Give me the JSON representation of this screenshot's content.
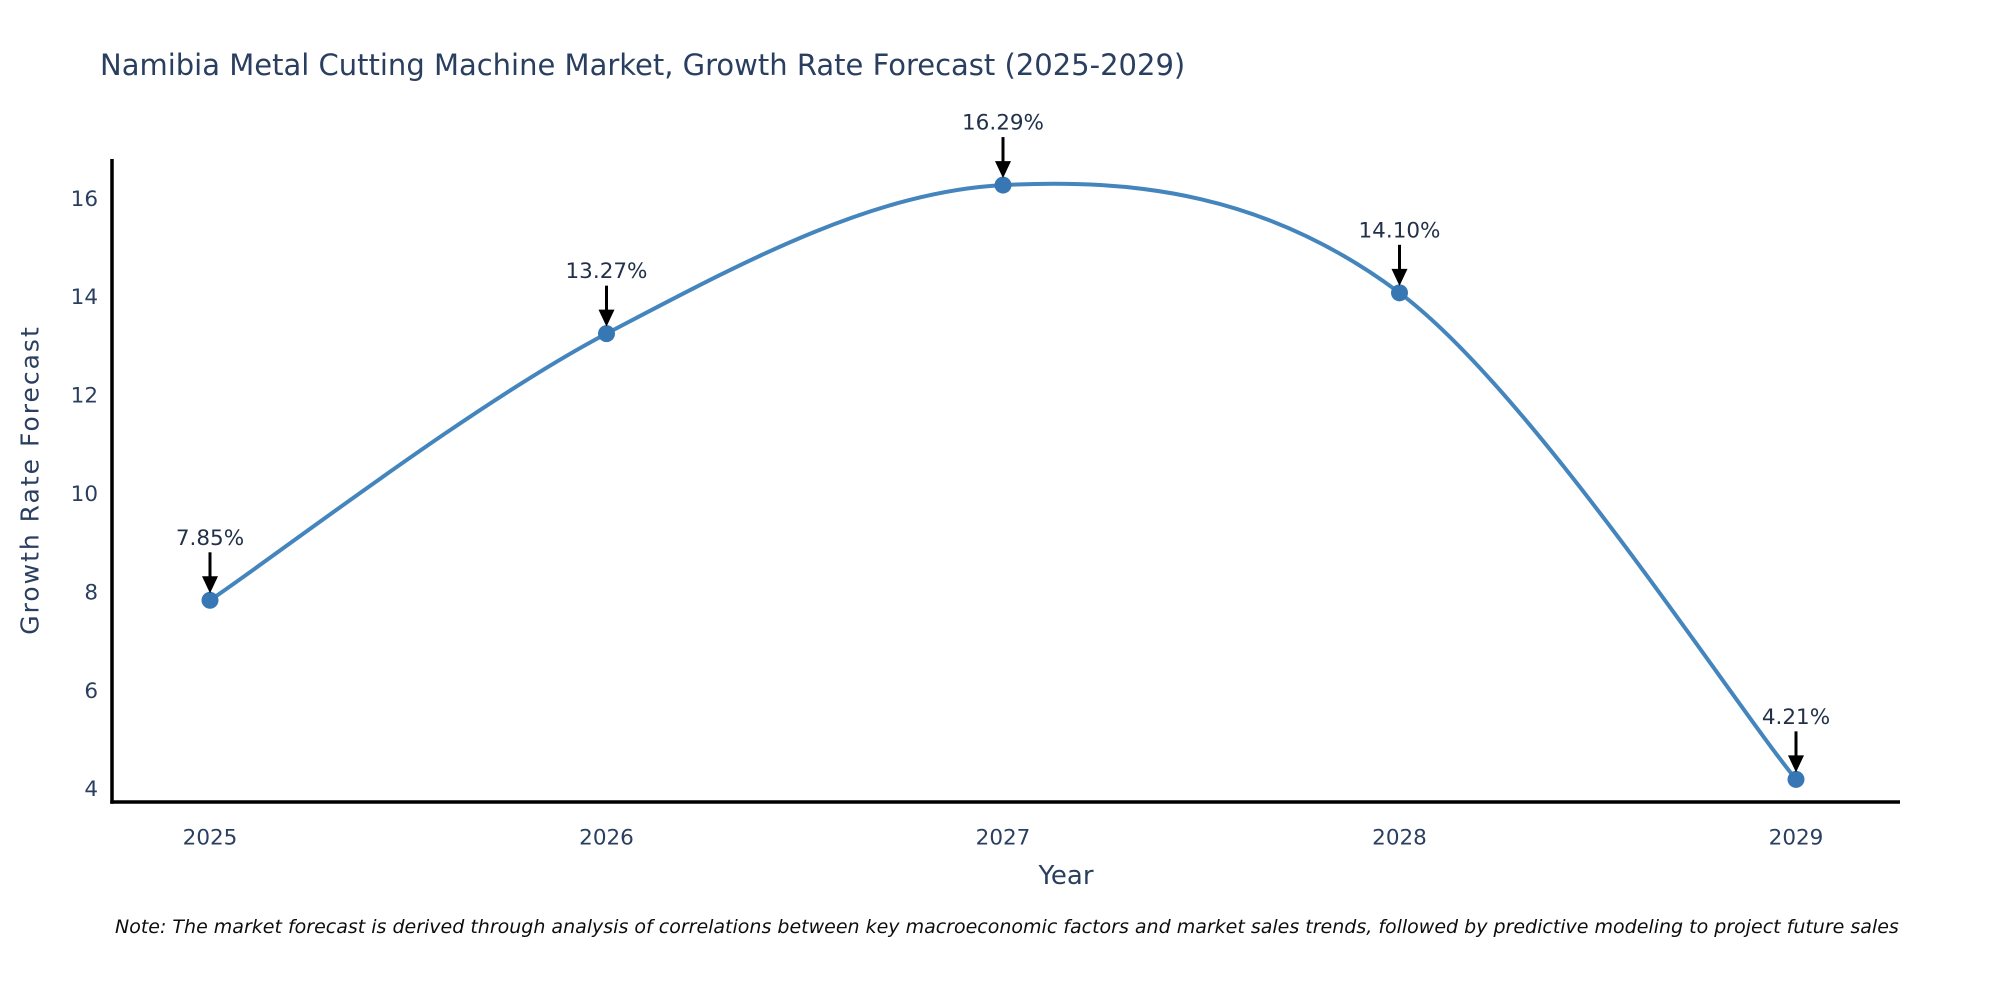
{
  "title": "Namibia Metal Cutting Machine Market, Growth Rate Forecast (2025-2029)",
  "note": "Note: The market forecast is derived through analysis of correlations between key macroeconomic factors and market sales trends, followed by predictive modeling to project future sales",
  "chart_data": {
    "type": "line",
    "line_shape": "spline",
    "x": [
      2025,
      2026,
      2027,
      2028,
      2029
    ],
    "series": [
      {
        "name": "Growth Rate Forecast",
        "values": [
          7.85,
          13.27,
          16.29,
          14.1,
          4.21
        ]
      }
    ],
    "point_labels": [
      "7.85%",
      "13.27%",
      "16.29%",
      "14.10%",
      "4.21%"
    ],
    "xlabel": "Year",
    "ylabel": "Growth Rate Forecast",
    "yticks": [
      4,
      6,
      8,
      10,
      12,
      14,
      16
    ],
    "ylim": [
      3.75,
      16.82
    ],
    "grid": false,
    "legend_position": "none",
    "colors": {
      "line": "#4485bd",
      "marker": "#3778b4",
      "axis": "#000000",
      "text": "#2a3f5f",
      "annotation_text": "#22304a",
      "annotation_arrow": "#000000",
      "note_text": "#0d0d0d",
      "background": "#ffffff"
    }
  }
}
